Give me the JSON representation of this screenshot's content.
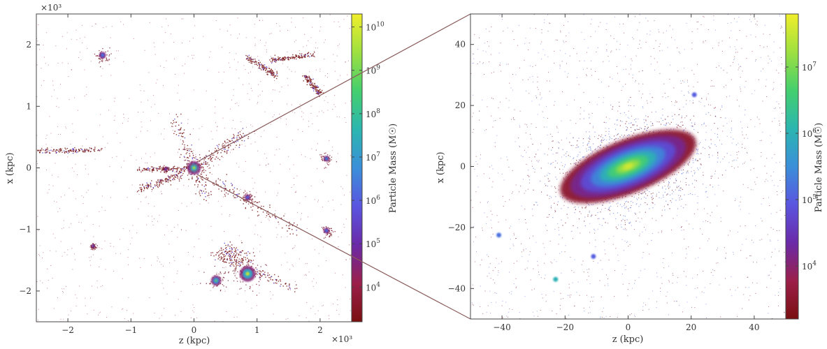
{
  "figure": {
    "zoom_connector_color": "#8a5a5a"
  },
  "colormap": [
    "#7a1010",
    "#9b1f4a",
    "#6a2aa8",
    "#5a55e0",
    "#3b8fd9",
    "#2bb6b0",
    "#44cf6e",
    "#9ee040",
    "#f0ee2a"
  ],
  "chart_data": [
    {
      "type": "scatter",
      "panel": "left",
      "xlabel": "z (kpc)",
      "ylabel": "x (kpc)",
      "x_scale_label": "×10³",
      "y_scale_label": "×10³",
      "xlim": [
        -2.5,
        2.5
      ],
      "ylim": [
        -2.5,
        2.5
      ],
      "x_ticks": [
        -2,
        -1,
        0,
        1,
        2
      ],
      "y_ticks": [
        -2,
        -1,
        0,
        1,
        2
      ],
      "x_tick_labels": [
        "−2",
        "−1",
        "0",
        "1",
        "2"
      ],
      "y_tick_labels": [
        "−2",
        "−1",
        "0",
        "1",
        "2"
      ],
      "colorbar": {
        "label": "Particle Mass (M☉)",
        "scale": "log",
        "range_log10": [
          3.2,
          10.3
        ],
        "ticks": [
          {
            "value": 10,
            "base": "10",
            "exp": "10"
          },
          {
            "value": 9,
            "base": "10",
            "exp": "9"
          },
          {
            "value": 8,
            "base": "10",
            "exp": "8"
          },
          {
            "value": 7,
            "base": "10",
            "exp": "7"
          },
          {
            "value": 6,
            "base": "10",
            "exp": "6"
          },
          {
            "value": 5,
            "base": "10",
            "exp": "5"
          },
          {
            "value": 4,
            "base": "10",
            "exp": "4"
          }
        ]
      },
      "zoom_region": {
        "z": [
          -0.05,
          0.05
        ],
        "x": [
          -0.05,
          0.05
        ]
      },
      "clumps": [
        {
          "z": 0.0,
          "x": 0.0,
          "log_mass": 9.5,
          "size": 0.12
        },
        {
          "z": 0.85,
          "x": -1.72,
          "log_mass": 9.8,
          "size": 0.14
        },
        {
          "z": 0.35,
          "x": -1.83,
          "log_mass": 8.8,
          "size": 0.09
        },
        {
          "z": -1.45,
          "x": 1.83,
          "log_mass": 7.2,
          "size": 0.06
        },
        {
          "z": 2.1,
          "x": 0.15,
          "log_mass": 7.8,
          "size": 0.05
        },
        {
          "z": 2.1,
          "x": -1.02,
          "log_mass": 7.3,
          "size": 0.05
        },
        {
          "z": 0.85,
          "x": -0.48,
          "log_mass": 6.8,
          "size": 0.05
        },
        {
          "z": -1.6,
          "x": -1.27,
          "log_mass": 6.2,
          "size": 0.03
        },
        {
          "z": -0.45,
          "x": -0.02,
          "log_mass": 6.0,
          "size": 0.03
        }
      ],
      "filaments": [
        {
          "from": [
            -2.5,
            0.28
          ],
          "to": [
            -1.5,
            0.3
          ],
          "width": 0.04
        },
        {
          "from": [
            -0.9,
            -0.02
          ],
          "to": [
            0.0,
            0.0
          ],
          "width": 0.04
        },
        {
          "from": [
            0.0,
            0.0
          ],
          "to": [
            0.85,
            0.6
          ],
          "width": 0.1
        },
        {
          "from": [
            0.0,
            0.0
          ],
          "to": [
            1.6,
            -1.0
          ],
          "width": 0.1
        },
        {
          "from": [
            0.3,
            -1.4
          ],
          "to": [
            1.6,
            -1.95
          ],
          "width": 0.08
        },
        {
          "from": [
            1.2,
            1.75
          ],
          "to": [
            1.9,
            1.85
          ],
          "width": 0.04
        },
        {
          "from": [
            0.85,
            1.8
          ],
          "to": [
            1.3,
            1.5
          ],
          "width": 0.05
        },
        {
          "from": [
            1.75,
            1.5
          ],
          "to": [
            2.0,
            1.2
          ],
          "width": 0.05
        },
        {
          "from": [
            -0.9,
            -0.35
          ],
          "to": [
            -0.2,
            -0.1
          ],
          "width": 0.06
        },
        {
          "from": [
            0.4,
            -1.3
          ],
          "to": [
            0.9,
            -1.5
          ],
          "width": 0.15
        },
        {
          "from": [
            -0.3,
            0.8
          ],
          "to": [
            0.2,
            -0.5
          ],
          "width": 0.12
        }
      ]
    },
    {
      "type": "scatter",
      "panel": "right",
      "xlabel": "z (kpc)",
      "ylabel": "x (kpc)",
      "xlim": [
        -50,
        50
      ],
      "ylim": [
        -50,
        50
      ],
      "x_ticks": [
        -40,
        -20,
        0,
        20,
        40
      ],
      "y_ticks": [
        40,
        20,
        0,
        -20,
        -40
      ],
      "x_tick_labels": [
        "−40",
        "−20",
        "0",
        "20",
        "40"
      ],
      "y_tick_labels": [
        "40",
        "20",
        "0",
        "−20",
        "−40"
      ],
      "colorbar": {
        "label": "Particle Mass (M☉)",
        "scale": "log",
        "range_log10": [
          3.2,
          7.8
        ],
        "ticks": [
          {
            "value": 7,
            "base": "10",
            "exp": "7"
          },
          {
            "value": 6,
            "base": "10",
            "exp": "6"
          },
          {
            "value": 5,
            "base": "10",
            "exp": "5"
          },
          {
            "value": 4,
            "base": "10",
            "exp": "4"
          }
        ]
      },
      "disk": {
        "center": [
          0,
          0
        ],
        "semi_major": 23,
        "semi_minor": 8.5,
        "angle_deg": 22,
        "log_mass_center": 7.8,
        "log_mass_edge": 3.5
      },
      "satellites": [
        {
          "z": -41,
          "x": -22.5,
          "log_mass": 5.2
        },
        {
          "z": -11,
          "x": -29.5,
          "log_mass": 5.0
        },
        {
          "z": 21,
          "x": 23.5,
          "log_mass": 5.0
        },
        {
          "z": -23,
          "x": -37,
          "log_mass": 6.0
        }
      ]
    }
  ]
}
